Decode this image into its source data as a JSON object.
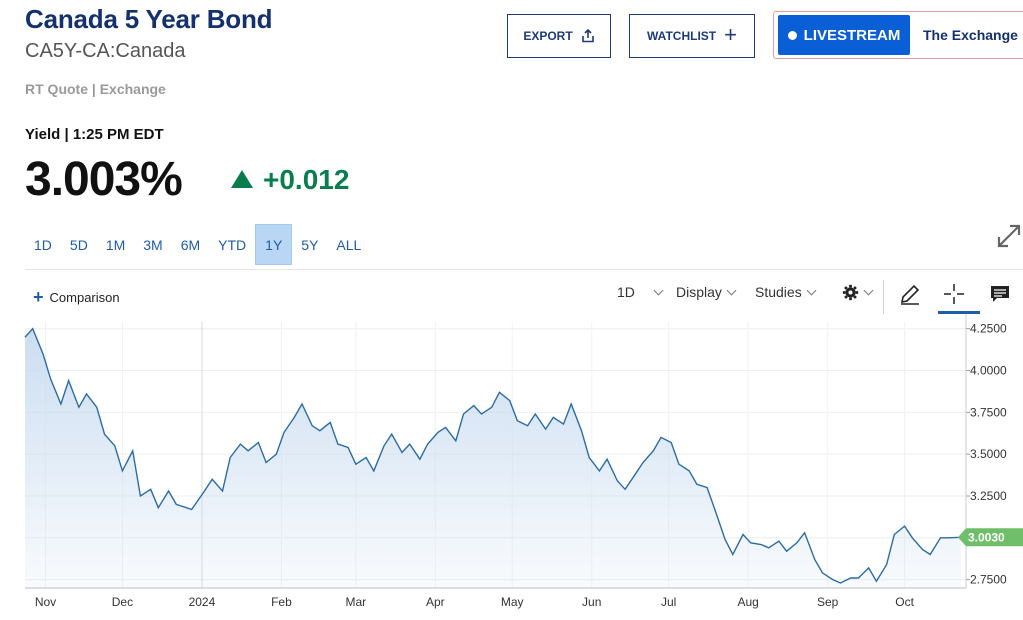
{
  "header": {
    "title": "Canada 5 Year Bond",
    "symbol": "CA5Y-CA:Canada",
    "quote_source": "RT Quote | Exchange"
  },
  "actions": {
    "export_label": "EXPORT",
    "watchlist_label": "WATCHLIST",
    "livestream_label": "LIVESTREAM",
    "livestream_show": "The Exchange"
  },
  "quote": {
    "label": "Yield | 1:25 PM EDT",
    "price": "3.003%",
    "change": "+0.012",
    "change_color": "#0a7d4f"
  },
  "ranges": [
    "1D",
    "5D",
    "1M",
    "3M",
    "6M",
    "YTD",
    "1Y",
    "5Y",
    "ALL"
  ],
  "active_range": "1Y",
  "toolbar": {
    "comparison_label": "Comparison",
    "interval_label": "1D",
    "display_label": "Display",
    "studies_label": "Studies",
    "icons": [
      "gear-icon",
      "pencil-icon",
      "crosshair-icon",
      "comment-icon"
    ]
  },
  "chart_data": {
    "type": "area",
    "title": "",
    "xlabel": "",
    "ylabel": "",
    "x_tick_labels": [
      "Nov",
      "Dec",
      "2024",
      "Feb",
      "Mar",
      "Apr",
      "May",
      "Jun",
      "Jul",
      "Aug",
      "Sep",
      "Oct"
    ],
    "x_range": [
      "2023-10-24",
      "2024-10-23"
    ],
    "y_tick_labels": [
      "4.2500",
      "4.0000",
      "3.7500",
      "3.5000",
      "3.2500",
      "3.0000",
      "2.7500"
    ],
    "ylim": [
      2.7,
      4.29
    ],
    "last_value": "3.0030",
    "line_color": "#2b6ca3",
    "fill_color": "#c9dcf0",
    "series": [
      {
        "x": [
          "2023-10-24",
          "2023-10-27",
          "2023-10-31",
          "2023-11-03",
          "2023-11-07",
          "2023-11-10",
          "2023-11-14",
          "2023-11-17",
          "2023-11-21",
          "2023-11-24",
          "2023-11-28",
          "2023-12-01",
          "2023-12-05",
          "2023-12-08",
          "2023-12-12",
          "2023-12-15",
          "2023-12-19",
          "2023-12-22",
          "2023-12-28",
          "2024-01-02",
          "2024-01-05",
          "2024-01-09",
          "2024-01-12",
          "2024-01-16",
          "2024-01-19",
          "2024-01-23",
          "2024-01-26",
          "2024-01-30",
          "2024-02-02",
          "2024-02-06",
          "2024-02-09",
          "2024-02-13",
          "2024-02-16",
          "2024-02-20",
          "2024-02-23",
          "2024-02-27",
          "2024-03-01",
          "2024-03-05",
          "2024-03-08",
          "2024-03-12",
          "2024-03-15",
          "2024-03-19",
          "2024-03-22",
          "2024-03-26",
          "2024-03-29",
          "2024-04-02",
          "2024-04-05",
          "2024-04-09",
          "2024-04-12",
          "2024-04-16",
          "2024-04-19",
          "2024-04-23",
          "2024-04-26",
          "2024-04-30",
          "2024-05-03",
          "2024-05-07",
          "2024-05-10",
          "2024-05-14",
          "2024-05-17",
          "2024-05-21",
          "2024-05-24",
          "2024-05-28",
          "2024-05-31",
          "2024-06-04",
          "2024-06-07",
          "2024-06-11",
          "2024-06-14",
          "2024-06-18",
          "2024-06-21",
          "2024-06-25",
          "2024-06-28",
          "2024-07-02",
          "2024-07-05",
          "2024-07-09",
          "2024-07-12",
          "2024-07-16",
          "2024-07-19",
          "2024-07-23",
          "2024-07-26",
          "2024-07-30",
          "2024-08-02",
          "2024-08-06",
          "2024-08-09",
          "2024-08-13",
          "2024-08-16",
          "2024-08-20",
          "2024-08-23",
          "2024-08-27",
          "2024-08-30",
          "2024-09-03",
          "2024-09-06",
          "2024-09-10",
          "2024-09-13",
          "2024-09-17",
          "2024-09-20",
          "2024-09-24",
          "2024-09-27",
          "2024-10-01",
          "2024-10-04",
          "2024-10-08",
          "2024-10-11",
          "2024-10-15",
          "2024-10-18",
          "2024-10-23"
        ],
        "y": [
          4.2,
          4.25,
          4.1,
          3.95,
          3.8,
          3.94,
          3.78,
          3.86,
          3.78,
          3.62,
          3.55,
          3.4,
          3.52,
          3.25,
          3.29,
          3.18,
          3.28,
          3.2,
          3.17,
          3.28,
          3.35,
          3.28,
          3.48,
          3.56,
          3.52,
          3.57,
          3.45,
          3.5,
          3.63,
          3.72,
          3.8,
          3.67,
          3.64,
          3.69,
          3.56,
          3.54,
          3.44,
          3.48,
          3.4,
          3.55,
          3.62,
          3.51,
          3.56,
          3.47,
          3.56,
          3.63,
          3.66,
          3.58,
          3.74,
          3.79,
          3.74,
          3.78,
          3.87,
          3.82,
          3.7,
          3.67,
          3.74,
          3.65,
          3.72,
          3.68,
          3.8,
          3.64,
          3.48,
          3.4,
          3.47,
          3.34,
          3.29,
          3.38,
          3.45,
          3.52,
          3.6,
          3.57,
          3.44,
          3.4,
          3.32,
          3.3,
          3.17,
          2.99,
          2.9,
          3.02,
          2.97,
          2.96,
          2.94,
          2.98,
          2.92,
          2.97,
          3.03,
          2.87,
          2.79,
          2.75,
          2.73,
          2.76,
          2.76,
          2.82,
          2.74,
          2.84,
          3.02,
          3.07,
          3.0,
          2.93,
          2.9,
          3.0,
          3.0,
          3.003
        ]
      }
    ]
  }
}
